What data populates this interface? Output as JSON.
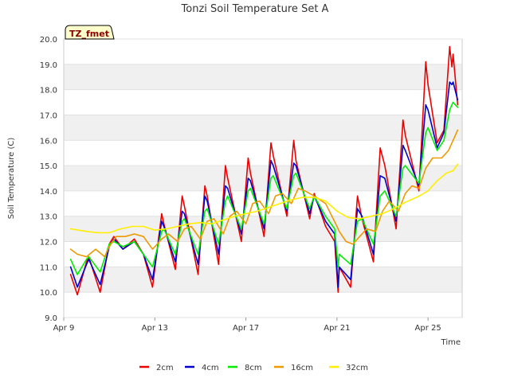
{
  "chart_data": {
    "type": "line",
    "title": "Tonzi Soil Temperature Set A",
    "xlabel": "Time",
    "ylabel": "Soil Temperature (C)",
    "badge": "TZ_fmet",
    "xlim": [
      0,
      17.5
    ],
    "ylim": [
      9.0,
      20.0
    ],
    "x_ticks": [
      {
        "x": 0,
        "label": "Apr 9"
      },
      {
        "x": 4,
        "label": "Apr 13"
      },
      {
        "x": 8,
        "label": "Apr 17"
      },
      {
        "x": 12,
        "label": "Apr 21"
      },
      {
        "x": 16,
        "label": "Apr 25"
      }
    ],
    "y_ticks": [
      9.0,
      10.0,
      11.0,
      12.0,
      13.0,
      14.0,
      15.0,
      16.0,
      17.0,
      18.0,
      19.0,
      20.0
    ],
    "series": [
      {
        "name": "2cm",
        "color": "#ee0000",
        "points": [
          [
            0.3,
            10.7
          ],
          [
            0.6,
            9.9
          ],
          [
            1.0,
            11.2
          ],
          [
            1.1,
            11.4
          ],
          [
            1.6,
            10.0
          ],
          [
            2.0,
            11.9
          ],
          [
            2.2,
            12.2
          ],
          [
            2.6,
            11.7
          ],
          [
            3.1,
            12.1
          ],
          [
            3.5,
            11.5
          ],
          [
            3.9,
            10.2
          ],
          [
            4.3,
            13.1
          ],
          [
            4.4,
            12.7
          ],
          [
            4.9,
            10.9
          ],
          [
            5.2,
            13.8
          ],
          [
            5.3,
            13.4
          ],
          [
            5.9,
            10.7
          ],
          [
            6.2,
            14.2
          ],
          [
            6.3,
            13.8
          ],
          [
            6.8,
            11.1
          ],
          [
            7.1,
            15.0
          ],
          [
            7.2,
            14.5
          ],
          [
            7.8,
            12.0
          ],
          [
            8.1,
            15.3
          ],
          [
            8.2,
            14.7
          ],
          [
            8.8,
            12.2
          ],
          [
            9.1,
            15.9
          ],
          [
            9.2,
            15.4
          ],
          [
            9.8,
            13.0
          ],
          [
            10.1,
            16.0
          ],
          [
            10.2,
            15.2
          ],
          [
            10.8,
            12.9
          ],
          [
            11.0,
            13.9
          ],
          [
            11.5,
            12.6
          ],
          [
            11.9,
            12.0
          ],
          [
            12.05,
            10.0
          ],
          [
            12.1,
            11.0
          ],
          [
            12.6,
            10.2
          ],
          [
            12.9,
            13.8
          ],
          [
            13.1,
            12.9
          ],
          [
            13.6,
            11.2
          ],
          [
            13.9,
            15.7
          ],
          [
            14.1,
            15.0
          ],
          [
            14.6,
            12.5
          ],
          [
            14.9,
            16.8
          ],
          [
            15.0,
            16.2
          ],
          [
            15.6,
            14.0
          ],
          [
            15.9,
            19.1
          ],
          [
            16.0,
            18.2
          ],
          [
            16.4,
            15.9
          ],
          [
            16.7,
            16.4
          ],
          [
            16.95,
            19.7
          ],
          [
            17.05,
            18.9
          ],
          [
            17.1,
            19.4
          ],
          [
            17.3,
            17.4
          ]
        ]
      },
      {
        "name": "4cm",
        "color": "#0000cc",
        "points": [
          [
            0.3,
            11.0
          ],
          [
            0.6,
            10.2
          ],
          [
            1.0,
            11.1
          ],
          [
            1.1,
            11.3
          ],
          [
            1.6,
            10.3
          ],
          [
            2.0,
            11.8
          ],
          [
            2.2,
            12.1
          ],
          [
            2.6,
            11.7
          ],
          [
            3.1,
            12.0
          ],
          [
            3.5,
            11.5
          ],
          [
            3.9,
            10.5
          ],
          [
            4.3,
            12.8
          ],
          [
            4.4,
            12.6
          ],
          [
            4.9,
            11.2
          ],
          [
            5.2,
            13.2
          ],
          [
            5.3,
            13.1
          ],
          [
            5.9,
            11.1
          ],
          [
            6.2,
            13.8
          ],
          [
            6.3,
            13.6
          ],
          [
            6.8,
            11.5
          ],
          [
            7.1,
            14.2
          ],
          [
            7.2,
            14.1
          ],
          [
            7.8,
            12.3
          ],
          [
            8.1,
            14.5
          ],
          [
            8.2,
            14.4
          ],
          [
            8.8,
            12.5
          ],
          [
            9.1,
            15.2
          ],
          [
            9.2,
            15.0
          ],
          [
            9.8,
            13.2
          ],
          [
            10.1,
            15.1
          ],
          [
            10.2,
            15.0
          ],
          [
            10.8,
            13.1
          ],
          [
            11.0,
            13.8
          ],
          [
            11.5,
            12.8
          ],
          [
            11.9,
            12.3
          ],
          [
            12.05,
            10.2
          ],
          [
            12.1,
            11.0
          ],
          [
            12.6,
            10.5
          ],
          [
            12.9,
            13.3
          ],
          [
            13.1,
            13.0
          ],
          [
            13.6,
            11.5
          ],
          [
            13.9,
            14.6
          ],
          [
            14.1,
            14.5
          ],
          [
            14.6,
            12.8
          ],
          [
            14.9,
            15.8
          ],
          [
            15.0,
            15.6
          ],
          [
            15.6,
            14.2
          ],
          [
            15.9,
            17.4
          ],
          [
            16.0,
            17.2
          ],
          [
            16.4,
            15.7
          ],
          [
            16.7,
            16.3
          ],
          [
            16.95,
            18.3
          ],
          [
            17.05,
            18.2
          ],
          [
            17.1,
            18.3
          ],
          [
            17.3,
            17.6
          ]
        ]
      },
      {
        "name": "8cm",
        "color": "#00ee00",
        "points": [
          [
            0.3,
            11.3
          ],
          [
            0.6,
            10.7
          ],
          [
            1.0,
            11.3
          ],
          [
            1.1,
            11.4
          ],
          [
            1.6,
            10.8
          ],
          [
            2.0,
            11.9
          ],
          [
            2.2,
            12.0
          ],
          [
            2.6,
            11.8
          ],
          [
            3.1,
            12.0
          ],
          [
            3.5,
            11.5
          ],
          [
            3.9,
            11.0
          ],
          [
            4.3,
            12.4
          ],
          [
            4.4,
            12.5
          ],
          [
            4.9,
            11.5
          ],
          [
            5.2,
            12.8
          ],
          [
            5.3,
            12.9
          ],
          [
            5.9,
            11.5
          ],
          [
            6.2,
            13.2
          ],
          [
            6.3,
            13.3
          ],
          [
            6.8,
            11.9
          ],
          [
            7.1,
            13.6
          ],
          [
            7.2,
            13.8
          ],
          [
            7.8,
            12.5
          ],
          [
            8.1,
            14.0
          ],
          [
            8.2,
            14.1
          ],
          [
            8.8,
            12.7
          ],
          [
            9.1,
            14.5
          ],
          [
            9.2,
            14.6
          ],
          [
            9.8,
            13.3
          ],
          [
            10.1,
            14.6
          ],
          [
            10.2,
            14.7
          ],
          [
            10.8,
            13.3
          ],
          [
            11.0,
            13.8
          ],
          [
            11.5,
            13.0
          ],
          [
            11.9,
            12.5
          ],
          [
            12.05,
            11.0
          ],
          [
            12.1,
            11.5
          ],
          [
            12.6,
            11.1
          ],
          [
            12.9,
            12.8
          ],
          [
            13.1,
            12.9
          ],
          [
            13.6,
            11.9
          ],
          [
            13.9,
            13.8
          ],
          [
            14.1,
            14.0
          ],
          [
            14.6,
            13.0
          ],
          [
            14.9,
            14.9
          ],
          [
            15.0,
            15.0
          ],
          [
            15.6,
            14.3
          ],
          [
            15.9,
            16.3
          ],
          [
            16.0,
            16.5
          ],
          [
            16.4,
            15.6
          ],
          [
            16.7,
            16.0
          ],
          [
            16.95,
            17.2
          ],
          [
            17.05,
            17.4
          ],
          [
            17.1,
            17.5
          ],
          [
            17.3,
            17.3
          ]
        ]
      },
      {
        "name": "16cm",
        "color": "#ee9900",
        "points": [
          [
            0.3,
            11.7
          ],
          [
            0.6,
            11.5
          ],
          [
            1.0,
            11.4
          ],
          [
            1.4,
            11.7
          ],
          [
            1.8,
            11.4
          ],
          [
            2.0,
            11.8
          ],
          [
            2.3,
            12.2
          ],
          [
            2.7,
            12.2
          ],
          [
            3.1,
            12.3
          ],
          [
            3.5,
            12.2
          ],
          [
            3.9,
            11.7
          ],
          [
            4.3,
            12.1
          ],
          [
            4.6,
            12.3
          ],
          [
            5.0,
            12.0
          ],
          [
            5.3,
            12.5
          ],
          [
            5.6,
            12.6
          ],
          [
            6.0,
            12.1
          ],
          [
            6.3,
            12.8
          ],
          [
            6.6,
            12.9
          ],
          [
            7.0,
            12.3
          ],
          [
            7.3,
            13.0
          ],
          [
            7.6,
            13.2
          ],
          [
            8.0,
            12.7
          ],
          [
            8.3,
            13.5
          ],
          [
            8.6,
            13.6
          ],
          [
            9.0,
            13.1
          ],
          [
            9.3,
            13.8
          ],
          [
            9.6,
            13.9
          ],
          [
            10.0,
            13.5
          ],
          [
            10.3,
            14.1
          ],
          [
            10.6,
            14.0
          ],
          [
            11.0,
            13.8
          ],
          [
            11.5,
            13.5
          ],
          [
            12.0,
            12.6
          ],
          [
            12.1,
            12.4
          ],
          [
            12.4,
            12.0
          ],
          [
            12.7,
            11.9
          ],
          [
            13.0,
            12.2
          ],
          [
            13.3,
            12.5
          ],
          [
            13.7,
            12.4
          ],
          [
            14.0,
            13.2
          ],
          [
            14.3,
            13.6
          ],
          [
            14.7,
            13.2
          ],
          [
            15.0,
            13.9
          ],
          [
            15.3,
            14.2
          ],
          [
            15.6,
            14.1
          ],
          [
            15.9,
            14.9
          ],
          [
            16.2,
            15.3
          ],
          [
            16.6,
            15.3
          ],
          [
            16.9,
            15.6
          ],
          [
            17.1,
            16.0
          ],
          [
            17.3,
            16.4
          ]
        ]
      },
      {
        "name": "32cm",
        "color": "#ffee00",
        "points": [
          [
            0.3,
            12.5
          ],
          [
            1.0,
            12.4
          ],
          [
            1.5,
            12.35
          ],
          [
            2.0,
            12.35
          ],
          [
            2.5,
            12.5
          ],
          [
            3.0,
            12.6
          ],
          [
            3.5,
            12.6
          ],
          [
            4.0,
            12.45
          ],
          [
            4.5,
            12.5
          ],
          [
            5.0,
            12.6
          ],
          [
            5.5,
            12.7
          ],
          [
            6.0,
            12.75
          ],
          [
            6.5,
            12.7
          ],
          [
            7.0,
            12.85
          ],
          [
            7.5,
            13.0
          ],
          [
            8.0,
            13.1
          ],
          [
            8.5,
            13.2
          ],
          [
            9.0,
            13.35
          ],
          [
            9.5,
            13.5
          ],
          [
            10.0,
            13.65
          ],
          [
            10.5,
            13.75
          ],
          [
            11.0,
            13.75
          ],
          [
            11.5,
            13.6
          ],
          [
            12.0,
            13.2
          ],
          [
            12.5,
            12.95
          ],
          [
            13.0,
            12.9
          ],
          [
            13.5,
            13.0
          ],
          [
            14.0,
            13.1
          ],
          [
            14.5,
            13.3
          ],
          [
            15.0,
            13.55
          ],
          [
            15.5,
            13.75
          ],
          [
            16.0,
            14.0
          ],
          [
            16.4,
            14.4
          ],
          [
            16.8,
            14.7
          ],
          [
            17.1,
            14.8
          ],
          [
            17.3,
            15.05
          ]
        ]
      }
    ]
  }
}
